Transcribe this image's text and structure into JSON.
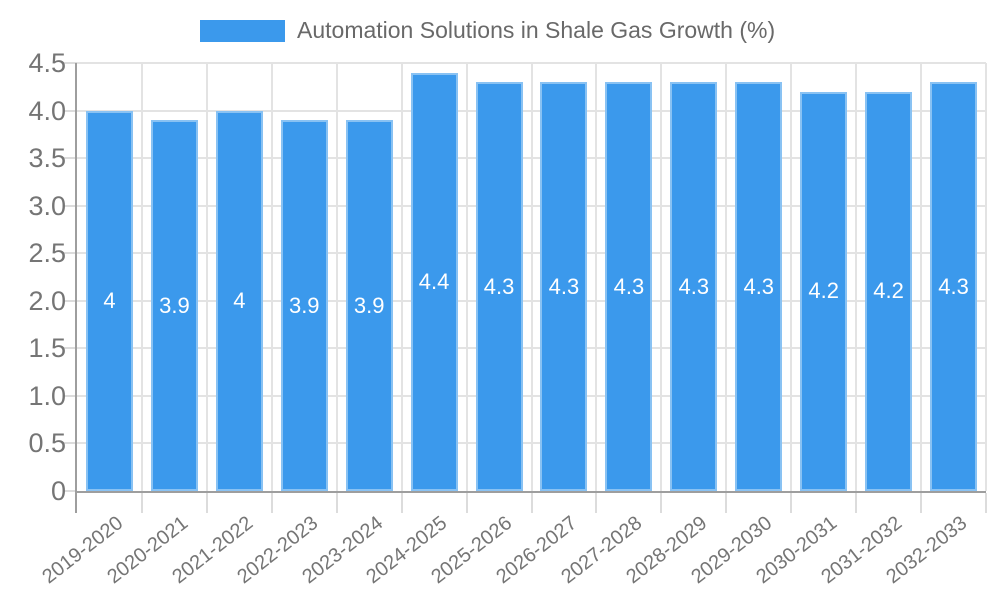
{
  "legend": {
    "series_label": "Automation Solutions in Shale Gas Growth (%)",
    "swatch_color": "#3b99ec"
  },
  "chart_data": {
    "type": "bar",
    "title": "Automation Solutions in Shale Gas Growth (%)",
    "categories": [
      "2019-2020",
      "2020-2021",
      "2021-2022",
      "2022-2023",
      "2023-2024",
      "2024-2025",
      "2025-2026",
      "2026-2027",
      "2027-2028",
      "2028-2029",
      "2029-2030",
      "2030-2031",
      "2031-2032",
      "2032-2033"
    ],
    "values": [
      4,
      3.9,
      4,
      3.9,
      3.9,
      4.4,
      4.3,
      4.3,
      4.3,
      4.3,
      4.3,
      4.2,
      4.2,
      4.3
    ],
    "value_labels": [
      "4",
      "3.9",
      "4",
      "3.9",
      "3.9",
      "4.4",
      "4.3",
      "4.3",
      "4.3",
      "4.3",
      "4.3",
      "4.2",
      "4.2",
      "4.3"
    ],
    "xlabel": "",
    "ylabel": "",
    "ylim": [
      0,
      4.5
    ],
    "y_ticks": [
      0,
      0.5,
      1.0,
      1.5,
      2.0,
      2.5,
      3.0,
      3.5,
      4.0,
      4.5
    ],
    "y_tick_labels": [
      "0",
      "0.5",
      "1.0",
      "1.5",
      "2.0",
      "2.5",
      "3.0",
      "3.5",
      "4.0",
      "4.5"
    ],
    "grid": true,
    "legend_position": "top-center",
    "bar_color": "#3b99ec",
    "value_label_color": "#ffffff",
    "axis_color": "#9e9e9e",
    "gridline_color": "#e3e3e3",
    "tick_label_color": "#757575"
  }
}
